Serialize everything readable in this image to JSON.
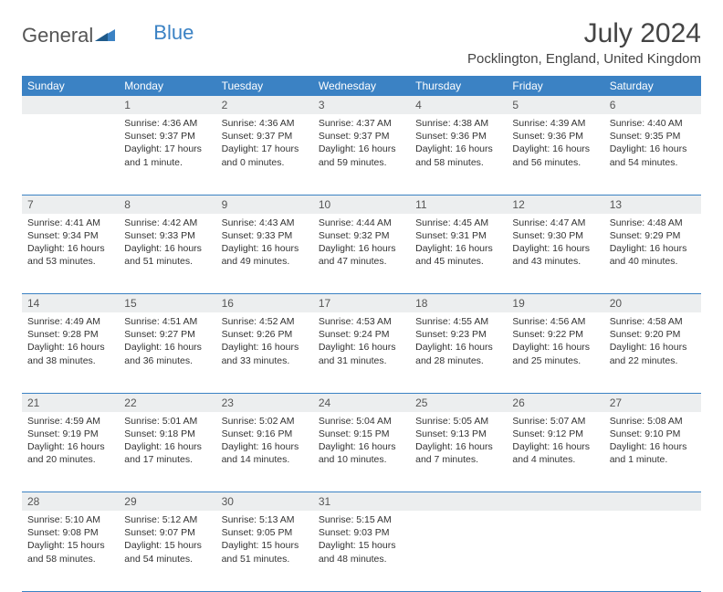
{
  "logo": {
    "text1": "General",
    "text2": "Blue"
  },
  "title": "July 2024",
  "location": "Pocklington, England, United Kingdom",
  "colors": {
    "header_bg": "#3b82c4",
    "header_text": "#ffffff",
    "daynum_bg": "#eceeef",
    "text": "#333333",
    "rule": "#3b82c4"
  },
  "weekdays": [
    "Sunday",
    "Monday",
    "Tuesday",
    "Wednesday",
    "Thursday",
    "Friday",
    "Saturday"
  ],
  "weeks": [
    {
      "nums": [
        "",
        "1",
        "2",
        "3",
        "4",
        "5",
        "6"
      ],
      "cells": [
        {},
        {
          "sunrise": "Sunrise: 4:36 AM",
          "sunset": "Sunset: 9:37 PM",
          "daylight1": "Daylight: 17 hours",
          "daylight2": "and 1 minute."
        },
        {
          "sunrise": "Sunrise: 4:36 AM",
          "sunset": "Sunset: 9:37 PM",
          "daylight1": "Daylight: 17 hours",
          "daylight2": "and 0 minutes."
        },
        {
          "sunrise": "Sunrise: 4:37 AM",
          "sunset": "Sunset: 9:37 PM",
          "daylight1": "Daylight: 16 hours",
          "daylight2": "and 59 minutes."
        },
        {
          "sunrise": "Sunrise: 4:38 AM",
          "sunset": "Sunset: 9:36 PM",
          "daylight1": "Daylight: 16 hours",
          "daylight2": "and 58 minutes."
        },
        {
          "sunrise": "Sunrise: 4:39 AM",
          "sunset": "Sunset: 9:36 PM",
          "daylight1": "Daylight: 16 hours",
          "daylight2": "and 56 minutes."
        },
        {
          "sunrise": "Sunrise: 4:40 AM",
          "sunset": "Sunset: 9:35 PM",
          "daylight1": "Daylight: 16 hours",
          "daylight2": "and 54 minutes."
        }
      ]
    },
    {
      "nums": [
        "7",
        "8",
        "9",
        "10",
        "11",
        "12",
        "13"
      ],
      "cells": [
        {
          "sunrise": "Sunrise: 4:41 AM",
          "sunset": "Sunset: 9:34 PM",
          "daylight1": "Daylight: 16 hours",
          "daylight2": "and 53 minutes."
        },
        {
          "sunrise": "Sunrise: 4:42 AM",
          "sunset": "Sunset: 9:33 PM",
          "daylight1": "Daylight: 16 hours",
          "daylight2": "and 51 minutes."
        },
        {
          "sunrise": "Sunrise: 4:43 AM",
          "sunset": "Sunset: 9:33 PM",
          "daylight1": "Daylight: 16 hours",
          "daylight2": "and 49 minutes."
        },
        {
          "sunrise": "Sunrise: 4:44 AM",
          "sunset": "Sunset: 9:32 PM",
          "daylight1": "Daylight: 16 hours",
          "daylight2": "and 47 minutes."
        },
        {
          "sunrise": "Sunrise: 4:45 AM",
          "sunset": "Sunset: 9:31 PM",
          "daylight1": "Daylight: 16 hours",
          "daylight2": "and 45 minutes."
        },
        {
          "sunrise": "Sunrise: 4:47 AM",
          "sunset": "Sunset: 9:30 PM",
          "daylight1": "Daylight: 16 hours",
          "daylight2": "and 43 minutes."
        },
        {
          "sunrise": "Sunrise: 4:48 AM",
          "sunset": "Sunset: 9:29 PM",
          "daylight1": "Daylight: 16 hours",
          "daylight2": "and 40 minutes."
        }
      ]
    },
    {
      "nums": [
        "14",
        "15",
        "16",
        "17",
        "18",
        "19",
        "20"
      ],
      "cells": [
        {
          "sunrise": "Sunrise: 4:49 AM",
          "sunset": "Sunset: 9:28 PM",
          "daylight1": "Daylight: 16 hours",
          "daylight2": "and 38 minutes."
        },
        {
          "sunrise": "Sunrise: 4:51 AM",
          "sunset": "Sunset: 9:27 PM",
          "daylight1": "Daylight: 16 hours",
          "daylight2": "and 36 minutes."
        },
        {
          "sunrise": "Sunrise: 4:52 AM",
          "sunset": "Sunset: 9:26 PM",
          "daylight1": "Daylight: 16 hours",
          "daylight2": "and 33 minutes."
        },
        {
          "sunrise": "Sunrise: 4:53 AM",
          "sunset": "Sunset: 9:24 PM",
          "daylight1": "Daylight: 16 hours",
          "daylight2": "and 31 minutes."
        },
        {
          "sunrise": "Sunrise: 4:55 AM",
          "sunset": "Sunset: 9:23 PM",
          "daylight1": "Daylight: 16 hours",
          "daylight2": "and 28 minutes."
        },
        {
          "sunrise": "Sunrise: 4:56 AM",
          "sunset": "Sunset: 9:22 PM",
          "daylight1": "Daylight: 16 hours",
          "daylight2": "and 25 minutes."
        },
        {
          "sunrise": "Sunrise: 4:58 AM",
          "sunset": "Sunset: 9:20 PM",
          "daylight1": "Daylight: 16 hours",
          "daylight2": "and 22 minutes."
        }
      ]
    },
    {
      "nums": [
        "21",
        "22",
        "23",
        "24",
        "25",
        "26",
        "27"
      ],
      "cells": [
        {
          "sunrise": "Sunrise: 4:59 AM",
          "sunset": "Sunset: 9:19 PM",
          "daylight1": "Daylight: 16 hours",
          "daylight2": "and 20 minutes."
        },
        {
          "sunrise": "Sunrise: 5:01 AM",
          "sunset": "Sunset: 9:18 PM",
          "daylight1": "Daylight: 16 hours",
          "daylight2": "and 17 minutes."
        },
        {
          "sunrise": "Sunrise: 5:02 AM",
          "sunset": "Sunset: 9:16 PM",
          "daylight1": "Daylight: 16 hours",
          "daylight2": "and 14 minutes."
        },
        {
          "sunrise": "Sunrise: 5:04 AM",
          "sunset": "Sunset: 9:15 PM",
          "daylight1": "Daylight: 16 hours",
          "daylight2": "and 10 minutes."
        },
        {
          "sunrise": "Sunrise: 5:05 AM",
          "sunset": "Sunset: 9:13 PM",
          "daylight1": "Daylight: 16 hours",
          "daylight2": "and 7 minutes."
        },
        {
          "sunrise": "Sunrise: 5:07 AM",
          "sunset": "Sunset: 9:12 PM",
          "daylight1": "Daylight: 16 hours",
          "daylight2": "and 4 minutes."
        },
        {
          "sunrise": "Sunrise: 5:08 AM",
          "sunset": "Sunset: 9:10 PM",
          "daylight1": "Daylight: 16 hours",
          "daylight2": "and 1 minute."
        }
      ]
    },
    {
      "nums": [
        "28",
        "29",
        "30",
        "31",
        "",
        "",
        ""
      ],
      "cells": [
        {
          "sunrise": "Sunrise: 5:10 AM",
          "sunset": "Sunset: 9:08 PM",
          "daylight1": "Daylight: 15 hours",
          "daylight2": "and 58 minutes."
        },
        {
          "sunrise": "Sunrise: 5:12 AM",
          "sunset": "Sunset: 9:07 PM",
          "daylight1": "Daylight: 15 hours",
          "daylight2": "and 54 minutes."
        },
        {
          "sunrise": "Sunrise: 5:13 AM",
          "sunset": "Sunset: 9:05 PM",
          "daylight1": "Daylight: 15 hours",
          "daylight2": "and 51 minutes."
        },
        {
          "sunrise": "Sunrise: 5:15 AM",
          "sunset": "Sunset: 9:03 PM",
          "daylight1": "Daylight: 15 hours",
          "daylight2": "and 48 minutes."
        },
        {},
        {},
        {}
      ]
    }
  ]
}
